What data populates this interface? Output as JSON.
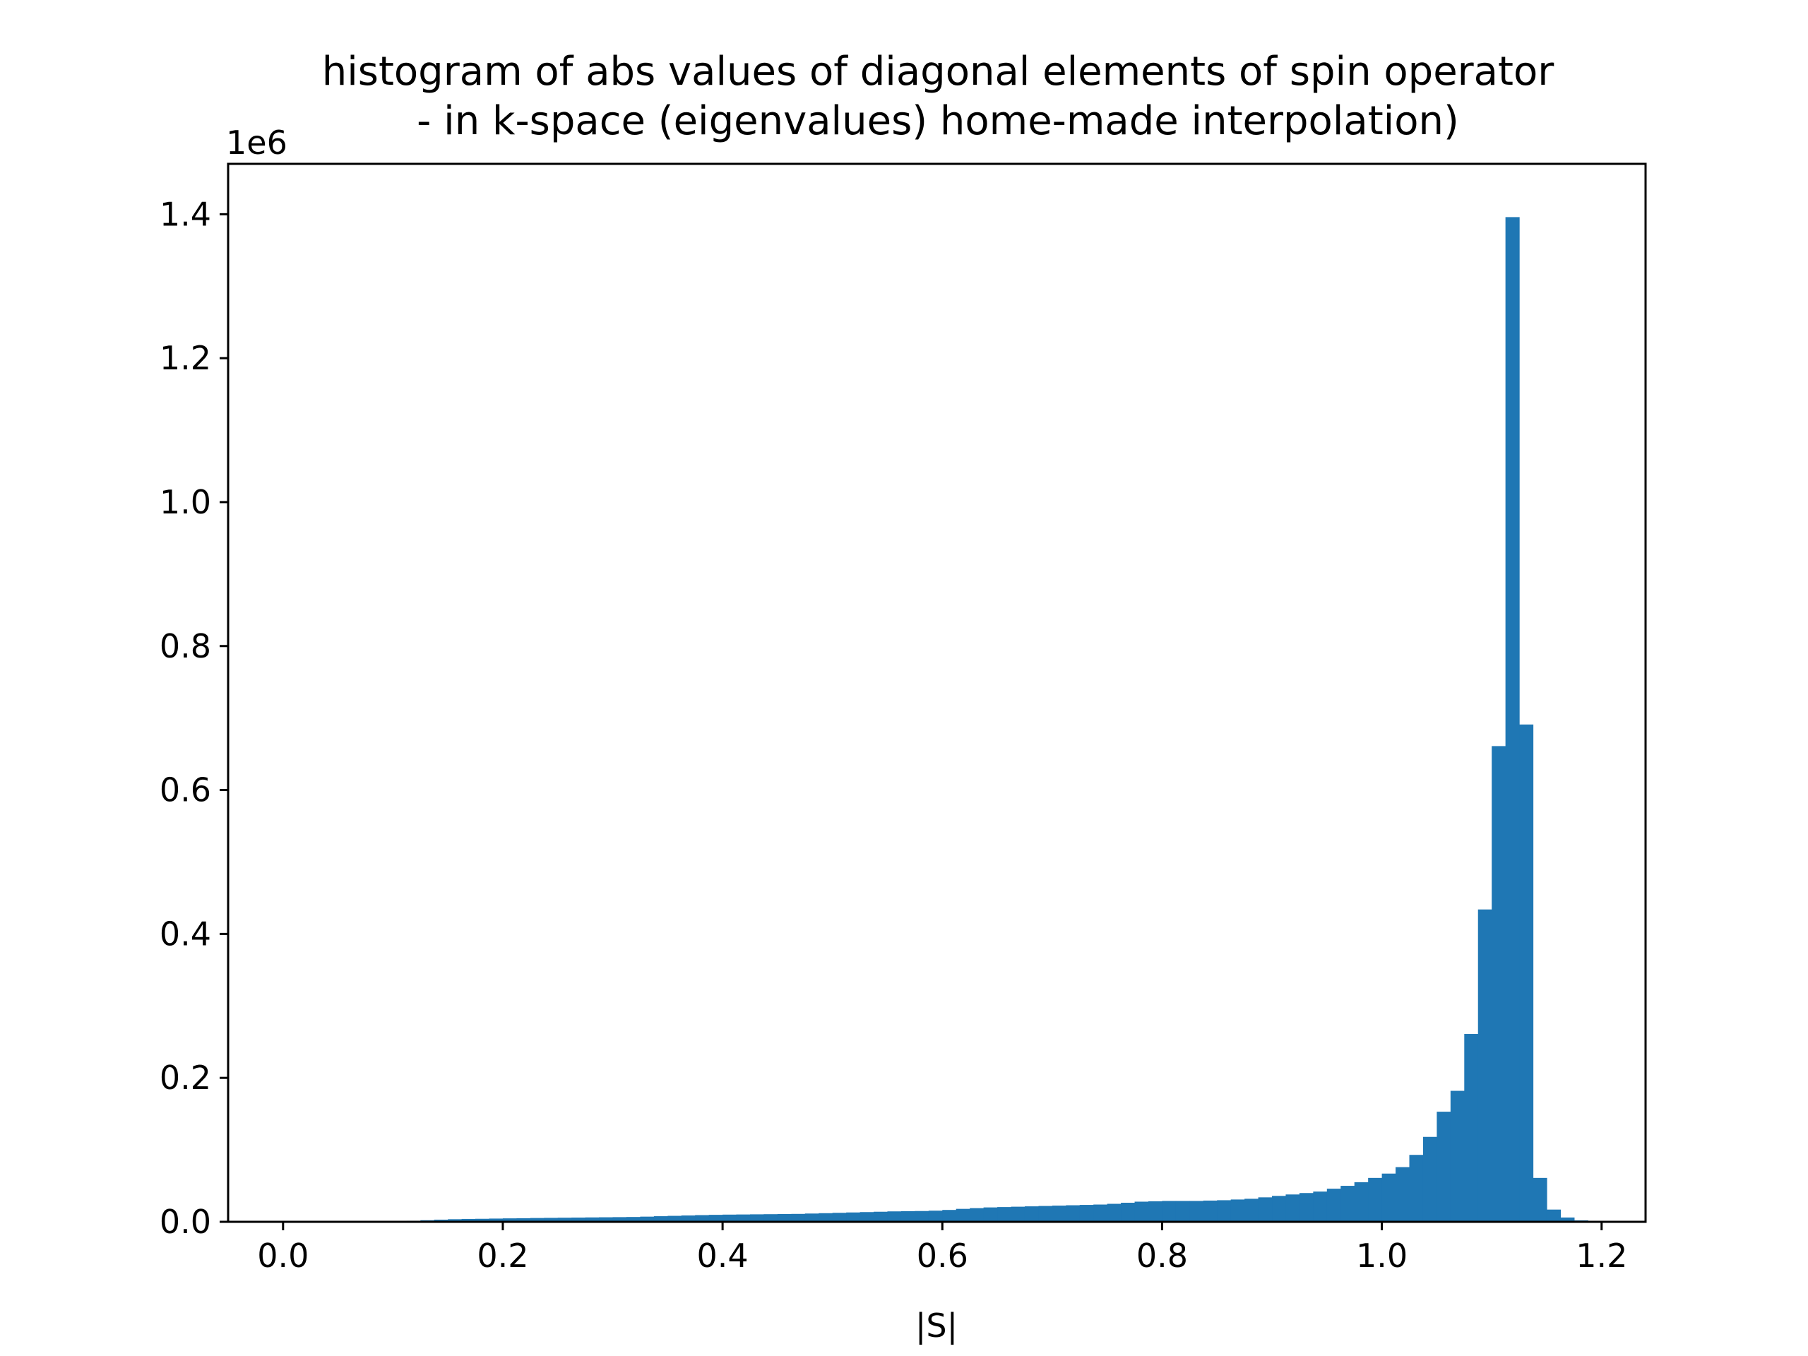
{
  "chart_data": {
    "type": "bar",
    "title_line1": "histogram of abs values of diagonal elements of spin operator",
    "title_line2": "- in k-space (eigenvalues) home-made interpolation)",
    "xlabel": "|S|",
    "ylabel": "",
    "y_offset_label": "1e6",
    "xlim": [
      -0.05,
      1.24
    ],
    "ylim": [
      0,
      1.47
    ],
    "bin_width": 0.0125,
    "bin_start": 0.0,
    "x_ticks": [
      {
        "value": 0.0,
        "label": "0.0"
      },
      {
        "value": 0.2,
        "label": "0.2"
      },
      {
        "value": 0.4,
        "label": "0.4"
      },
      {
        "value": 0.6,
        "label": "0.6"
      },
      {
        "value": 0.8,
        "label": "0.8"
      },
      {
        "value": 1.0,
        "label": "1.0"
      },
      {
        "value": 1.2,
        "label": "1.2"
      }
    ],
    "y_ticks": [
      {
        "value": 0.0,
        "label": "0.0"
      },
      {
        "value": 0.2,
        "label": "0.2"
      },
      {
        "value": 0.4,
        "label": "0.4"
      },
      {
        "value": 0.6,
        "label": "0.6"
      },
      {
        "value": 0.8,
        "label": "0.8"
      },
      {
        "value": 1.0,
        "label": "1.0"
      },
      {
        "value": 1.2,
        "label": "1.2"
      },
      {
        "value": 1.4,
        "label": "1.4"
      }
    ],
    "values": [
      0.0,
      0.0,
      0.0001,
      0.0002,
      0.0003,
      0.0004,
      0.0005,
      0.0007,
      0.001,
      0.0015,
      0.0022,
      0.003,
      0.0036,
      0.004,
      0.0042,
      0.0045,
      0.0048,
      0.005,
      0.0053,
      0.0055,
      0.0057,
      0.0059,
      0.0061,
      0.0063,
      0.0065,
      0.0067,
      0.0072,
      0.0078,
      0.0083,
      0.0088,
      0.0093,
      0.0097,
      0.01,
      0.0102,
      0.0104,
      0.0106,
      0.0108,
      0.011,
      0.0115,
      0.012,
      0.0125,
      0.013,
      0.0135,
      0.014,
      0.0145,
      0.0148,
      0.015,
      0.0155,
      0.0165,
      0.018,
      0.019,
      0.02,
      0.0205,
      0.021,
      0.0215,
      0.022,
      0.0225,
      0.023,
      0.0235,
      0.024,
      0.025,
      0.0265,
      0.028,
      0.0285,
      0.029,
      0.029,
      0.029,
      0.0295,
      0.03,
      0.031,
      0.032,
      0.034,
      0.036,
      0.038,
      0.04,
      0.042,
      0.046,
      0.05,
      0.055,
      0.061,
      0.067,
      0.076,
      0.093,
      0.118,
      0.153,
      0.182,
      0.261,
      0.434,
      0.661,
      1.396,
      0.691,
      0.061,
      0.017,
      0.006,
      0.002,
      0.0008,
      0.0003,
      0.0001,
      0.0001,
      0.0,
      0.0,
      0.0,
      0.0,
      0.0,
      0.0,
      0.0,
      0.0,
      0.0,
      0.0,
      0.0,
      0.0,
      0.0,
      0.0,
      0.0,
      0.0,
      0.0,
      0.0,
      0.0,
      0.0,
      0.0
    ],
    "bar_color": "#1f77b4",
    "grid": false,
    "legend": "none"
  }
}
